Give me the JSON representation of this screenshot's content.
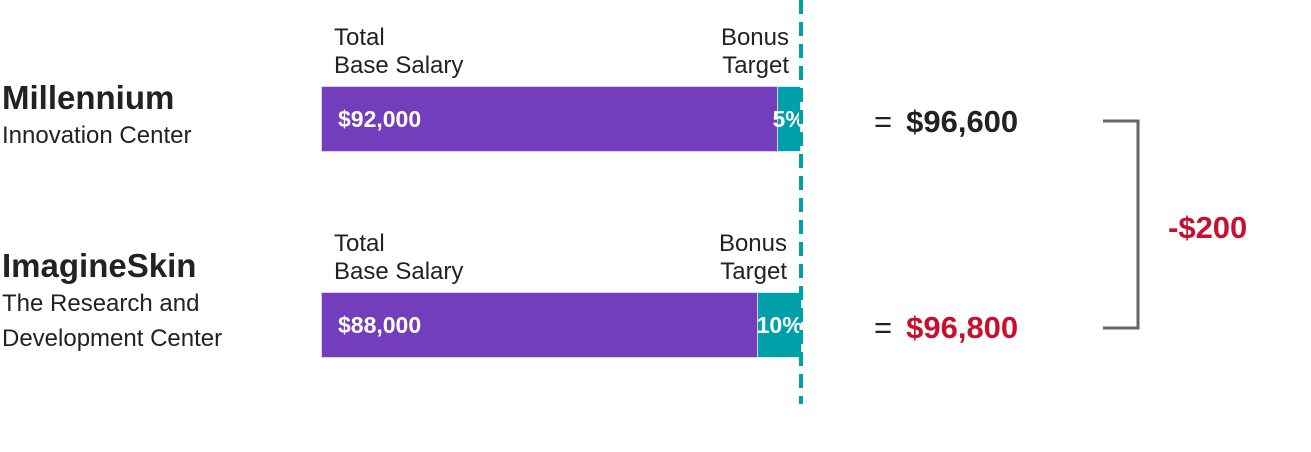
{
  "colors": {
    "base": "#733dbb",
    "bonus": "#00a0aa",
    "text": "#222222",
    "highlight": "#c8102e",
    "bracket": "#666666"
  },
  "labels": {
    "base_label": "Total\nBase Salary",
    "bonus_label": "Bonus\nTarget"
  },
  "rows": [
    {
      "company": "Millennium",
      "subtitle": "Innovation Center",
      "base_text": "$92,000",
      "bonus_text": "5%",
      "total_text": "$96,600",
      "total_highlight": false
    },
    {
      "company": "ImagineSkin",
      "subtitle": "The Research and\nDevelopment Center",
      "base_text": "$88,000",
      "bonus_text": "10%",
      "total_text": "$96,800",
      "total_highlight": true
    }
  ],
  "difference": "-$200",
  "equals_sign": "=",
  "chart_data": {
    "type": "bar",
    "orientation": "horizontal",
    "stacked": true,
    "categories": [
      "Millennium",
      "ImagineSkin"
    ],
    "series": [
      {
        "name": "Total Base Salary",
        "values": [
          92000,
          88000
        ]
      },
      {
        "name": "Bonus Target",
        "values": [
          4600,
          8800
        ]
      }
    ],
    "bonus_percent": [
      5,
      10
    ],
    "totals": [
      96600,
      96800
    ],
    "reference_line_value": 92000,
    "xlim": [
      0,
      96600
    ],
    "difference_value": -200,
    "grid": false
  }
}
